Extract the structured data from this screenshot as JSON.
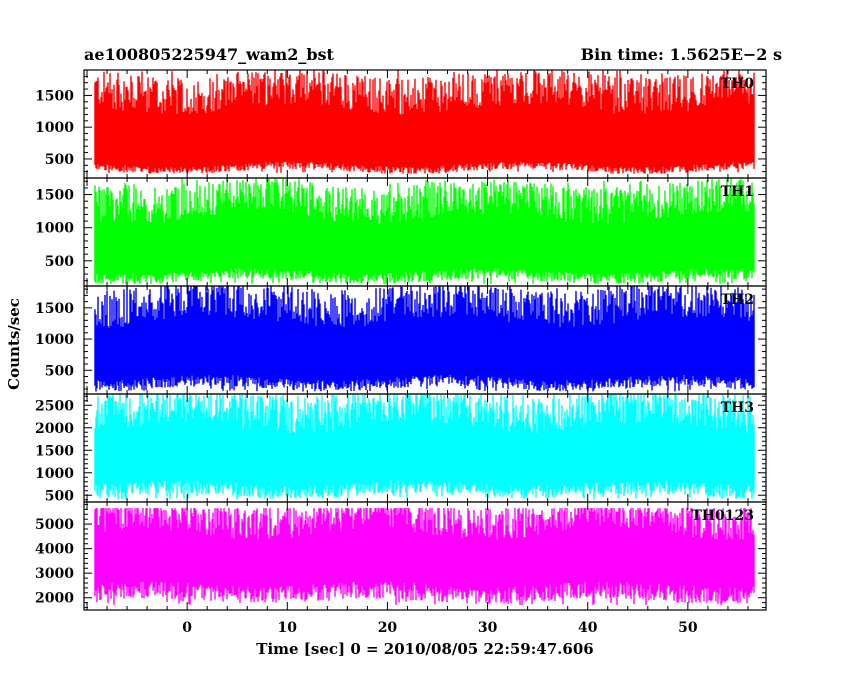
{
  "chart_data": {
    "type": "line",
    "title_left": "ae100805225947_wam2_bst",
    "title_right": "Bin time: 1.5625E−2 s",
    "xlabel": "Time [sec] 0 = 2010/08/05 22:59:47.606",
    "ylabel": "Counts/sec",
    "x_range": [
      -9.2,
      56.6
    ],
    "xlim": [
      -10.3,
      57.8
    ],
    "x_ticks": [
      0,
      10,
      20,
      30,
      40,
      50
    ],
    "panels": [
      {
        "name": "TH0",
        "color": "#ff0000",
        "ylim": [
          200,
          1900
        ],
        "yticks": [
          500,
          1000,
          1500
        ],
        "mean": 850,
        "lo": 380,
        "hi": 1450,
        "min": 270,
        "max": 1900
      },
      {
        "name": "TH1",
        "color": "#00ff00",
        "ylim": [
          120,
          1750
        ],
        "yticks": [
          500,
          1000,
          1500
        ],
        "mean": 720,
        "lo": 300,
        "hi": 1300,
        "min": 150,
        "max": 1750
      },
      {
        "name": "TH2",
        "color": "#0000ff",
        "ylim": [
          120,
          1850
        ],
        "yticks": [
          500,
          1000,
          1500
        ],
        "mean": 820,
        "lo": 330,
        "hi": 1450,
        "min": 160,
        "max": 1850
      },
      {
        "name": "TH3",
        "color": "#00ffff",
        "ylim": [
          350,
          2750
        ],
        "yticks": [
          500,
          1000,
          1500,
          2000,
          2500
        ],
        "mean": 1380,
        "lo": 680,
        "hi": 2250,
        "min": 400,
        "max": 2750
      },
      {
        "name": "TH0123",
        "color": "#ff00ff",
        "ylim": [
          1500,
          5900
        ],
        "yticks": [
          2000,
          3000,
          4000,
          5000
        ],
        "mean": 3620,
        "lo": 2350,
        "hi": 5000,
        "min": 1700,
        "max": 5650
      }
    ]
  }
}
